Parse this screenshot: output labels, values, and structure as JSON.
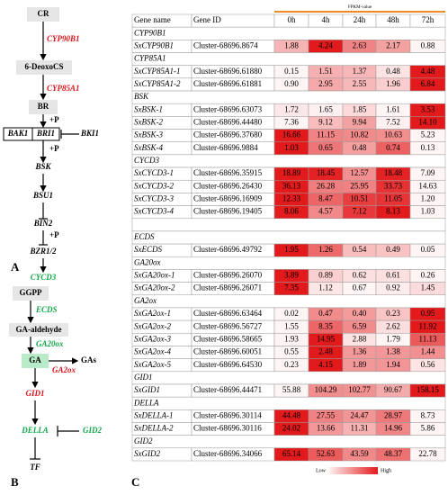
{
  "panel_a": {
    "label": "A",
    "cr": "CR",
    "cyp90b1": "CYP90B1",
    "deoxocs": "6-DeoxoCS",
    "cyp85a1": "CYP85A1",
    "br": "BR",
    "p1": "+P",
    "bak1": "BAK1",
    "bri1": "BRI1",
    "bki1": "BKI1",
    "p2": "+P",
    "bsk": "BSK",
    "bsu1": "BSU1",
    "bin2": "BIN2",
    "p3": "+P",
    "bzr": "BZR1/2",
    "cycd3": "CYCD3"
  },
  "panel_b": {
    "label": "B",
    "ggpp": "GGPP",
    "ecds": "ECDS",
    "gaald": "GA-aldehyde",
    "ga20ox": "GA20ox",
    "ga": "GA",
    "gas": "GAs",
    "ga2ox": "GA2ox",
    "gid1": "GID1",
    "della": "DELLA",
    "gid2": "GID2",
    "tf": "TF"
  },
  "panel_c": {
    "label": "C",
    "title": "FPKM-value",
    "columns": [
      "Gene name",
      "Gene ID",
      "0h",
      "4h",
      "24h",
      "48h",
      "72h"
    ],
    "sections": [
      {
        "rows": [
          [
            "CYP90B1"
          ],
          [
            "SxCYP90B1",
            "Cluster-68696.8674",
            "1.88",
            "4.24",
            "2.63",
            "2.17",
            "0.88"
          ],
          [
            "CYP85A1"
          ],
          [
            "SxCYP85A1-1",
            "Cluster-68696.61880",
            "0.15",
            "1.51",
            "1.37",
            "0.48",
            "4.48"
          ],
          [
            "SxCYP85A1-2",
            "Cluster-68696.61881",
            "0.90",
            "2.95",
            "2.55",
            "1.96",
            "6.84"
          ],
          [
            "BSK"
          ],
          [
            "SxBSK-1",
            "Cluster-68696.63073",
            "1.72",
            "1.65",
            "1.85",
            "1.61",
            "3.53"
          ],
          [
            "SxBSK-2",
            "Cluster-68696.44480",
            "7.36",
            "9.12",
            "9.94",
            "7.52",
            "14.10"
          ],
          [
            "SxBSK-3",
            "Cluster-68696.37680",
            "16.66",
            "11.15",
            "10.82",
            "10.63",
            "5.23"
          ],
          [
            "SxBSK-4",
            "Cluster-68696.9884",
            "1.03",
            "0.65",
            "0.48",
            "0.74",
            "0.13"
          ],
          [
            "CYCD3"
          ],
          [
            "SxCYCD3-1",
            "Cluster-68696.35915",
            "18.89",
            "18.45",
            "12.57",
            "18.48",
            "7.09"
          ],
          [
            "SxCYCD3-2",
            "Cluster-68696.26430",
            "36.13",
            "26.28",
            "25.95",
            "33.73",
            "14.63"
          ],
          [
            "SxCYCD3-3",
            "Cluster-68696.16909",
            "12.33",
            "8.47",
            "10.51",
            "11.05",
            "1.20"
          ],
          [
            "SxCYCD3-4",
            "Cluster-68696.19405",
            "8.06",
            "4.57",
            "7.12",
            "8.13",
            "1.03"
          ]
        ]
      },
      {
        "rows": [
          [
            "ECDS"
          ],
          [
            "SxECDS",
            "Cluster-68696.49792",
            "1.95",
            "1.26",
            "0.54",
            "0.49",
            "0.05"
          ],
          [
            "GA20ox"
          ],
          [
            "SxGA20ox-1",
            "Cluster-68696.26070",
            "3.89",
            "0.89",
            "0.62",
            "0.61",
            "0.26"
          ],
          [
            "SxGA20ox-2",
            "Cluster-68696.26071",
            "7.35",
            "1.12",
            "0.67",
            "0.92",
            "1.45"
          ],
          [
            "GA2ox"
          ],
          [
            "SxGA2ox-1",
            "Cluster-68696.63464",
            "0.02",
            "0.47",
            "0.40",
            "0.23",
            "0.95"
          ],
          [
            "SxGA2ox-2",
            "Cluster-68696.56727",
            "1.55",
            "8.35",
            "6.59",
            "2.62",
            "11.92"
          ],
          [
            "SxGA2ox-3",
            "Cluster-68696.58665",
            "1.93",
            "14.95",
            "2.88",
            "1.79",
            "11.13"
          ],
          [
            "SxGA2ox-4",
            "Cluster-68696.60051",
            "0.55",
            "2.48",
            "1.36",
            "1.38",
            "1.44"
          ],
          [
            "SxGA2ox-5",
            "Cluster-68696.64530",
            "0.23",
            "4.15",
            "1.89",
            "1.94",
            "0.56"
          ],
          [
            "GID1"
          ],
          [
            "SxGID1",
            "Cluster-68696.44471",
            "55.88",
            "104.29",
            "102.77",
            "90.67",
            "158.15"
          ],
          [
            "DELLA"
          ],
          [
            "SxDELLA-1",
            "Cluster-68696.30114",
            "44.48",
            "27.55",
            "24.47",
            "28.97",
            "8.73"
          ],
          [
            "SxDELLA-2",
            "Cluster-68696.30116",
            "24.02",
            "13.66",
            "11.31",
            "14.96",
            "5.86"
          ],
          [
            "GID2"
          ],
          [
            "SxGID2",
            "Cluster-68696.34066",
            "65.14",
            "52.63",
            "43.59",
            "48.37",
            "22.78"
          ]
        ]
      }
    ],
    "legend": {
      "low": "Low",
      "high": "High"
    }
  }
}
